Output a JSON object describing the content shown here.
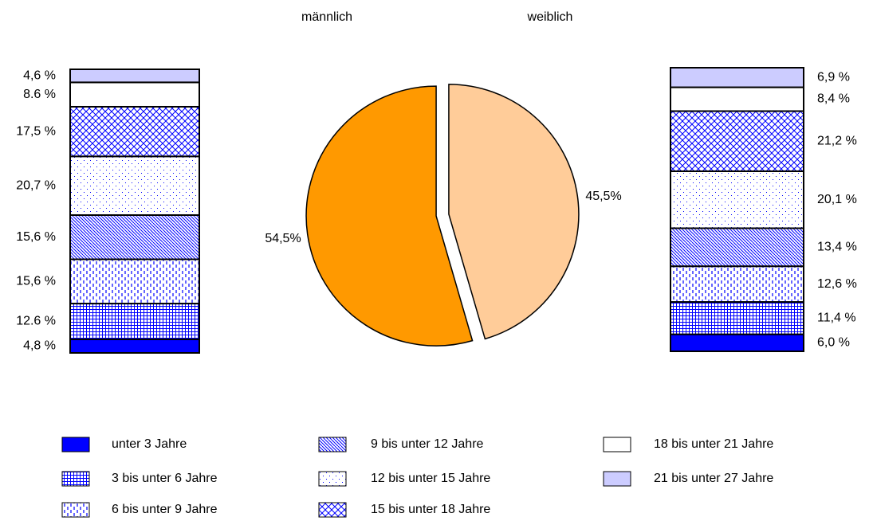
{
  "chart_data": [
    {
      "type": "pie",
      "categories": [
        "männlich",
        "weiblich"
      ],
      "values": [
        54.5,
        45.5
      ],
      "value_labels": [
        "54,5%",
        "45,5%"
      ],
      "colors": [
        "#FF9900",
        "#FFCC99"
      ]
    },
    {
      "type": "stacked_bar",
      "ylim": [
        0,
        100
      ],
      "series": [
        {
          "name": "unter 3 Jahre",
          "color": "#0000FF",
          "pattern": "solid",
          "values": [
            4.8,
            6.0
          ],
          "value_labels": [
            "4,8 %",
            "6,0 %"
          ]
        },
        {
          "name": "3 bis unter 6 Jahre",
          "color": "#0000FF",
          "pattern": "grid",
          "values": [
            12.6,
            11.4
          ],
          "value_labels": [
            "12.6 %",
            "11,4 %"
          ]
        },
        {
          "name": "6 bis unter 9 Jahre",
          "color": "#0000FF",
          "pattern": "vertical-dash",
          "values": [
            15.6,
            12.6
          ],
          "value_labels": [
            "15,6 %",
            "12,6 %"
          ]
        },
        {
          "name": "9 bis unter 12 Jahre",
          "color": "#0000FF",
          "pattern": "diagonal",
          "values": [
            15.6,
            13.4
          ],
          "value_labels": [
            "15,6 %",
            "13,4 %"
          ]
        },
        {
          "name": "12 bis unter 15 Jahre",
          "color": "#0000FF",
          "pattern": "dots",
          "values": [
            20.7,
            20.1
          ],
          "value_labels": [
            "20,7 %",
            "20,1 %"
          ]
        },
        {
          "name": "15 bis unter 18 Jahre",
          "color": "#0000FF",
          "pattern": "crosshatch",
          "values": [
            17.5,
            21.2
          ],
          "value_labels": [
            "17,5 %",
            "21,2 %"
          ]
        },
        {
          "name": "18 bis unter 21 Jahre",
          "color": "#FFFFFF",
          "pattern": "solid",
          "values": [
            8.6,
            8.4
          ],
          "value_labels": [
            "8.6 %",
            "8,4 %"
          ]
        },
        {
          "name": "21 bis unter 27 Jahre",
          "color": "#CCCCFF",
          "pattern": "solid",
          "values": [
            4.6,
            6.9
          ],
          "value_labels": [
            "4,6 %",
            "6,9 %"
          ]
        }
      ]
    }
  ]
}
